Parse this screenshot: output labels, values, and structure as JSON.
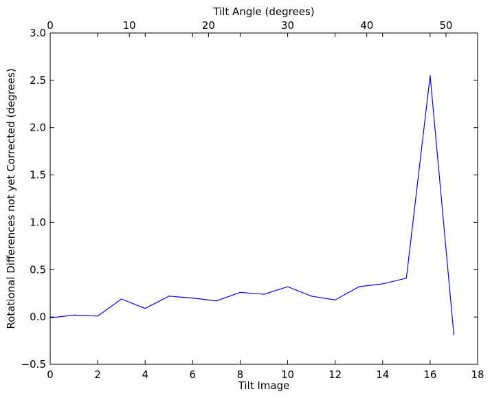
{
  "chart_data": {
    "type": "line",
    "xlabel": "Tilt Image",
    "x2label": "Tilt Angle (degrees)",
    "ylabel": "Rotational Differences not yet Corrected (degrees)",
    "xlim": [
      0,
      18
    ],
    "x2lim": [
      0,
      54
    ],
    "ylim": [
      -0.5,
      3.0
    ],
    "xticks": [
      "0",
      "2",
      "4",
      "6",
      "8",
      "10",
      "12",
      "14",
      "16",
      "18"
    ],
    "x2ticks": [
      "0",
      "10",
      "20",
      "30",
      "40",
      "50"
    ],
    "yticks": [
      "−0.5",
      "0.0",
      "0.5",
      "1.0",
      "1.5",
      "2.0",
      "2.5",
      "3.0"
    ],
    "grid": false,
    "line_color": "#0000ff",
    "series": [
      {
        "x": [
          0,
          1,
          2,
          3,
          4,
          5,
          6,
          7,
          8,
          9,
          10,
          11,
          12,
          13,
          14,
          15,
          16,
          17
        ],
        "values": [
          -0.01,
          0.02,
          0.01,
          0.19,
          0.09,
          0.22,
          0.2,
          0.17,
          0.26,
          0.24,
          0.32,
          0.22,
          0.18,
          0.32,
          0.35,
          0.41,
          2.55,
          -0.19
        ]
      }
    ]
  }
}
